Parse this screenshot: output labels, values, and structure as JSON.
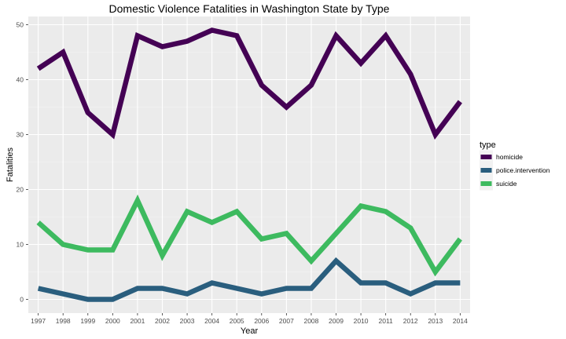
{
  "chart_data": {
    "type": "line",
    "title": "Domestic Violence Fatalities in Washington State by Type",
    "xlabel": "Year",
    "ylabel": "Fatalities",
    "x": [
      1997,
      1998,
      1999,
      2000,
      2001,
      2002,
      2003,
      2004,
      2005,
      2006,
      2007,
      2008,
      2009,
      2010,
      2011,
      2012,
      2013,
      2014
    ],
    "xlim": [
      1996.6,
      2014.4
    ],
    "ylim": [
      -2.5,
      51.5
    ],
    "y_ticks": [
      0,
      10,
      20,
      30,
      40,
      50
    ],
    "grid": true,
    "legend": {
      "title": "type",
      "position": "right"
    },
    "series": [
      {
        "name": "homicide",
        "color": "#440154",
        "values": [
          42,
          45,
          34,
          30,
          48,
          46,
          47,
          49,
          48,
          39,
          35,
          39,
          48,
          43,
          48,
          41,
          30,
          36
        ]
      },
      {
        "name": "police.intervention",
        "color": "#2a5e7e",
        "values": [
          2,
          1,
          0,
          0,
          2,
          2,
          1,
          3,
          2,
          1,
          2,
          2,
          7,
          3,
          3,
          1,
          3,
          3
        ]
      },
      {
        "name": "suicide",
        "color": "#3dba5f",
        "values": [
          14,
          10,
          9,
          9,
          18,
          8,
          16,
          14,
          16,
          11,
          12,
          7,
          12,
          17,
          16,
          13,
          5,
          11
        ]
      }
    ]
  }
}
